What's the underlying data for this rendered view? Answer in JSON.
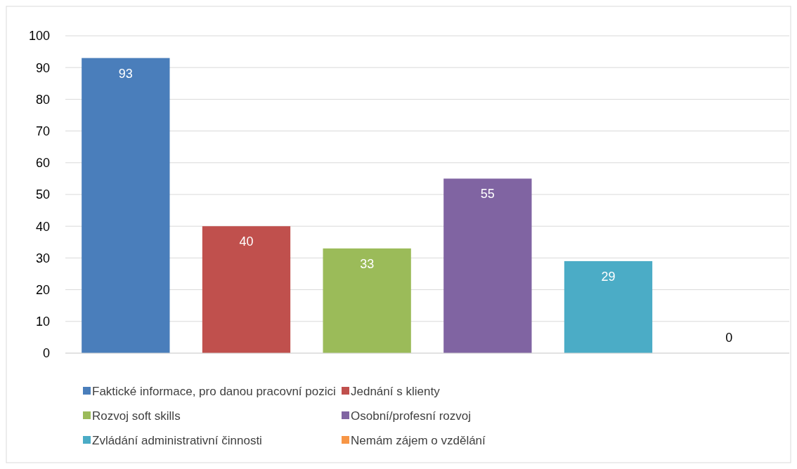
{
  "chart_data": {
    "type": "bar",
    "categories": [
      null,
      null,
      null,
      null,
      null,
      null
    ],
    "series": [
      {
        "name": "Faktické informace, pro danou pracovní pozici",
        "color": "#4a7ebb",
        "values": [
          93,
          null,
          null,
          null,
          null,
          null
        ]
      },
      {
        "name": "Jednání s klienty",
        "color": "#c0504d",
        "values": [
          null,
          40,
          null,
          null,
          null,
          null
        ]
      },
      {
        "name": "Rozvoj soft skills",
        "color": "#9bbb59",
        "values": [
          null,
          null,
          33,
          null,
          null,
          null
        ]
      },
      {
        "name": "Osobní/profesní rozvoj",
        "color": "#8064a2",
        "values": [
          null,
          null,
          null,
          55,
          null,
          null
        ]
      },
      {
        "name": "Zvládání administrativní činnosti",
        "color": "#4bacc6",
        "values": [
          null,
          null,
          null,
          null,
          29,
          null
        ]
      },
      {
        "name": "Nemám zájem o vzdělání",
        "color": "#f79646",
        "values": [
          null,
          null,
          null,
          null,
          null,
          0
        ]
      }
    ],
    "ylim": [
      0,
      100
    ],
    "yticks": [
      0,
      10,
      20,
      30,
      40,
      50,
      60,
      70,
      80,
      90,
      100
    ],
    "grid": "y",
    "legend": "bottom",
    "data_labels": true
  }
}
